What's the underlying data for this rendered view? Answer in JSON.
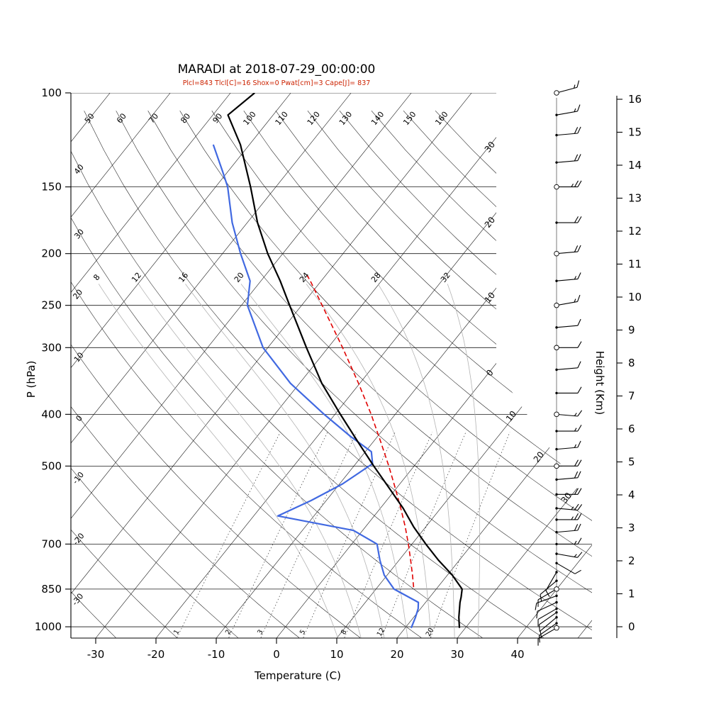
{
  "header": {
    "title": "MARADI at 2018-07-29_00:00:00",
    "params_line": "Plcl=843 Tlcl[C]=16 Shox=0 Pwat[cm]=3 Cape[J]= 837",
    "params_color": "#cc2200"
  },
  "axes": {
    "pressure_axis_label": "P (hPa)",
    "temperature_axis_label": "Temperature (C)",
    "height_axis_label": "Height (Km)",
    "pressure_ticks_hPa": [
      100,
      150,
      200,
      250,
      300,
      400,
      500,
      700,
      850,
      1000
    ],
    "temperature_ticks_C": [
      -30,
      -20,
      -10,
      0,
      10,
      20,
      30,
      40
    ],
    "height_ticks_km": [
      0,
      1,
      2,
      3,
      4,
      5,
      6,
      7,
      8,
      9,
      10,
      11,
      12,
      13,
      14,
      15,
      16
    ]
  },
  "chart_data": {
    "type": "line",
    "chart_kind": "skew-t_log-p_sounding",
    "station": "MARADI",
    "valid_time": "2018-07-29_00:00:00",
    "title": "MARADI at 2018-07-29_00:00:00",
    "indices": {
      "Plcl_hPa": 843,
      "Tlcl_C": 16,
      "Shox": 0,
      "Pwat_cm": 3,
      "Cape_J": 837
    },
    "pressure_range_hPa": [
      100,
      1050
    ],
    "temperature_range_at_bottom_C": [
      -34,
      52
    ],
    "skew": 0.8,
    "grid": {
      "isotherms_C": {
        "min": -100,
        "max": 50,
        "step": 10
      },
      "isotherm_exit_labels_C": [
        -30,
        -20,
        -10,
        0,
        10,
        20,
        30
      ],
      "dry_adiabats_C": [
        -30,
        -20,
        -10,
        0,
        10,
        20,
        30,
        40,
        50,
        60,
        70,
        80,
        90,
        100,
        110,
        120,
        130,
        140,
        150,
        160
      ],
      "moist_adiabats_C": [
        8,
        12,
        16,
        20,
        24,
        28,
        32
      ],
      "mixing_ratio_g_per_kg": [
        1,
        2,
        3,
        5,
        8,
        12,
        20
      ]
    },
    "temperature_profile": {
      "color": "#000000",
      "points_p_T": [
        [
          1005,
          29.0
        ],
        [
          960,
          27.5
        ],
        [
          900,
          25.7
        ],
        [
          880,
          25.2
        ],
        [
          850,
          24.3
        ],
        [
          800,
          20.8
        ],
        [
          750,
          16.5
        ],
        [
          700,
          12.3
        ],
        [
          650,
          8.0
        ],
        [
          600,
          3.8
        ],
        [
          550,
          -1.2
        ],
        [
          500,
          -6.7
        ],
        [
          450,
          -12.6
        ],
        [
          400,
          -19.1
        ],
        [
          350,
          -26.3
        ],
        [
          300,
          -33.6
        ],
        [
          250,
          -42.0
        ],
        [
          225,
          -46.8
        ],
        [
          200,
          -52.5
        ],
        [
          175,
          -58.3
        ],
        [
          150,
          -64.2
        ],
        [
          125,
          -71.5
        ],
        [
          110,
          -77.5
        ],
        [
          100,
          -76.0
        ]
      ]
    },
    "dewpoint_profile": {
      "color": "#4169e1",
      "points_p_T": [
        [
          1005,
          21.0
        ],
        [
          960,
          20.3
        ],
        [
          925,
          19.6
        ],
        [
          900,
          18.8
        ],
        [
          850,
          13.0
        ],
        [
          800,
          9.5
        ],
        [
          750,
          6.8
        ],
        [
          700,
          4.2
        ],
        [
          660,
          -1.5
        ],
        [
          620,
          -16.0
        ],
        [
          580,
          -12.5
        ],
        [
          540,
          -9.5
        ],
        [
          495,
          -7.2
        ],
        [
          470,
          -9.0
        ],
        [
          440,
          -14.5
        ],
        [
          400,
          -21.8
        ],
        [
          350,
          -31.5
        ],
        [
          300,
          -40.8
        ],
        [
          250,
          -49.0
        ],
        [
          225,
          -51.8
        ],
        [
          200,
          -57.0
        ],
        [
          175,
          -62.5
        ],
        [
          150,
          -68.0
        ],
        [
          140,
          -71.0
        ],
        [
          125,
          -76.0
        ]
      ]
    },
    "parcel_profile": {
      "color": "#e00000",
      "dashed": true,
      "points_p_T": [
        [
          843,
          16.0
        ],
        [
          800,
          14.2
        ],
        [
          750,
          11.9
        ],
        [
          700,
          9.4
        ],
        [
          650,
          6.6
        ],
        [
          600,
          3.4
        ],
        [
          550,
          -0.2
        ],
        [
          500,
          -4.2
        ],
        [
          450,
          -8.8
        ],
        [
          400,
          -14.0
        ],
        [
          350,
          -20.2
        ],
        [
          300,
          -27.6
        ],
        [
          250,
          -36.6
        ],
        [
          225,
          -41.8
        ],
        [
          220,
          -43.0
        ]
      ]
    },
    "wind_barbs": [
      {
        "p": 1005,
        "spd_kt": 10,
        "dir_deg": 240,
        "marker": "circle"
      },
      {
        "p": 985,
        "spd_kt": 10,
        "dir_deg": 235,
        "marker": "dot"
      },
      {
        "p": 960,
        "spd_kt": 10,
        "dir_deg": 230,
        "marker": "dot"
      },
      {
        "p": 940,
        "spd_kt": 12,
        "dir_deg": 235,
        "marker": "dot"
      },
      {
        "p": 925,
        "spd_kt": 10,
        "dir_deg": 240,
        "marker": "dot"
      },
      {
        "p": 900,
        "spd_kt": 10,
        "dir_deg": 245,
        "marker": "dot"
      },
      {
        "p": 875,
        "spd_kt": 10,
        "dir_deg": 250,
        "marker": "dot"
      },
      {
        "p": 850,
        "spd_kt": 10,
        "dir_deg": 240,
        "marker": "circle"
      },
      {
        "p": 820,
        "spd_kt": 8,
        "dir_deg": 230,
        "marker": "dot"
      },
      {
        "p": 790,
        "spd_kt": 8,
        "dir_deg": 210,
        "marker": "dot"
      },
      {
        "p": 760,
        "spd_kt": 10,
        "dir_deg": 120,
        "marker": "dot"
      },
      {
        "p": 730,
        "spd_kt": 15,
        "dir_deg": 100,
        "marker": "dot"
      },
      {
        "p": 700,
        "spd_kt": 15,
        "dir_deg": 90,
        "marker": "dot"
      },
      {
        "p": 665,
        "spd_kt": 20,
        "dir_deg": 85,
        "marker": "dot"
      },
      {
        "p": 630,
        "spd_kt": 25,
        "dir_deg": 90,
        "marker": "dot"
      },
      {
        "p": 600,
        "spd_kt": 25,
        "dir_deg": 95,
        "marker": "dot"
      },
      {
        "p": 565,
        "spd_kt": 20,
        "dir_deg": 90,
        "marker": "dot"
      },
      {
        "p": 530,
        "spd_kt": 20,
        "dir_deg": 85,
        "marker": "dot"
      },
      {
        "p": 500,
        "spd_kt": 20,
        "dir_deg": 90,
        "marker": "circle"
      },
      {
        "p": 465,
        "spd_kt": 15,
        "dir_deg": 85,
        "marker": "dot"
      },
      {
        "p": 430,
        "spd_kt": 15,
        "dir_deg": 90,
        "marker": "dot"
      },
      {
        "p": 400,
        "spd_kt": 15,
        "dir_deg": 95,
        "marker": "circle"
      },
      {
        "p": 365,
        "spd_kt": 10,
        "dir_deg": 90,
        "marker": "dot"
      },
      {
        "p": 330,
        "spd_kt": 10,
        "dir_deg": 85,
        "marker": "dot"
      },
      {
        "p": 300,
        "spd_kt": 10,
        "dir_deg": 90,
        "marker": "circle"
      },
      {
        "p": 275,
        "spd_kt": 10,
        "dir_deg": 85,
        "marker": "dot"
      },
      {
        "p": 250,
        "spd_kt": 15,
        "dir_deg": 80,
        "marker": "circle"
      },
      {
        "p": 225,
        "spd_kt": 15,
        "dir_deg": 85,
        "marker": "dot"
      },
      {
        "p": 200,
        "spd_kt": 20,
        "dir_deg": 85,
        "marker": "circle"
      },
      {
        "p": 175,
        "spd_kt": 20,
        "dir_deg": 90,
        "marker": "dot"
      },
      {
        "p": 150,
        "spd_kt": 25,
        "dir_deg": 90,
        "marker": "circle"
      },
      {
        "p": 135,
        "spd_kt": 20,
        "dir_deg": 85,
        "marker": "dot"
      },
      {
        "p": 120,
        "spd_kt": 20,
        "dir_deg": 85,
        "marker": "dot"
      },
      {
        "p": 110,
        "spd_kt": 15,
        "dir_deg": 80,
        "marker": "dot"
      },
      {
        "p": 100,
        "spd_kt": 15,
        "dir_deg": 75,
        "marker": "circle"
      }
    ],
    "height_axis": {
      "min_km": 0,
      "max_km": 16
    }
  }
}
